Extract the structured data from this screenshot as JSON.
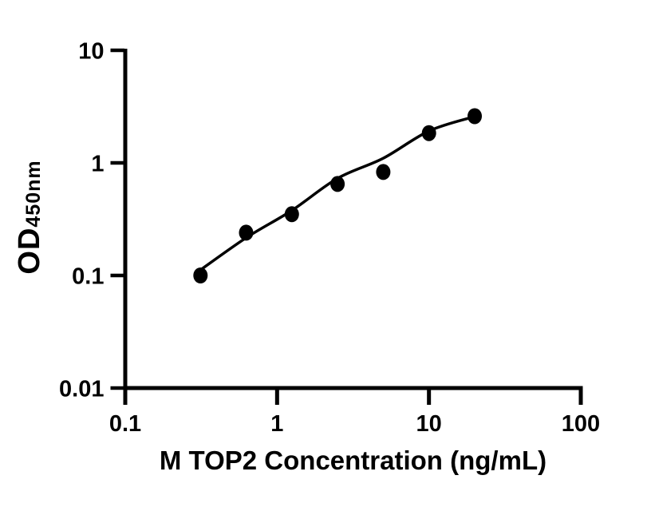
{
  "chart_data": {
    "type": "scatter",
    "title": "",
    "xlabel": "M TOP2 Concentration (ng/mL)",
    "ylabel": "OD450nm",
    "ylabel_main": "OD",
    "ylabel_sub": "450nm",
    "x_scale": "log",
    "y_scale": "log",
    "xlim": [
      0.1,
      100
    ],
    "ylim": [
      0.01,
      10
    ],
    "grid": false,
    "legend_position": "none",
    "x_ticks": [
      {
        "value": 0.1,
        "label": "0.1"
      },
      {
        "value": 1,
        "label": "1"
      },
      {
        "value": 10,
        "label": "10"
      },
      {
        "value": 100,
        "label": "100"
      }
    ],
    "y_ticks": [
      {
        "value": 0.01,
        "label": "0.01"
      },
      {
        "value": 0.1,
        "label": "0.1"
      },
      {
        "value": 1,
        "label": "1"
      },
      {
        "value": 10,
        "label": "10"
      }
    ],
    "series": [
      {
        "name": "standard-points",
        "type": "scatter",
        "x": [
          0.313,
          0.625,
          1.25,
          2.5,
          5,
          10,
          20
        ],
        "y": [
          0.1,
          0.24,
          0.35,
          0.65,
          0.83,
          1.84,
          2.6
        ]
      },
      {
        "name": "fitted-curve",
        "type": "line",
        "x": [
          0.29,
          0.625,
          1.25,
          2.5,
          5,
          10,
          20
        ],
        "y": [
          0.104,
          0.216,
          0.378,
          0.728,
          1.1,
          1.92,
          2.58
        ]
      }
    ],
    "colors": {
      "marker": "#000000",
      "line": "#000000",
      "axis": "#000000",
      "text": "#000000",
      "background": "#ffffff"
    }
  }
}
